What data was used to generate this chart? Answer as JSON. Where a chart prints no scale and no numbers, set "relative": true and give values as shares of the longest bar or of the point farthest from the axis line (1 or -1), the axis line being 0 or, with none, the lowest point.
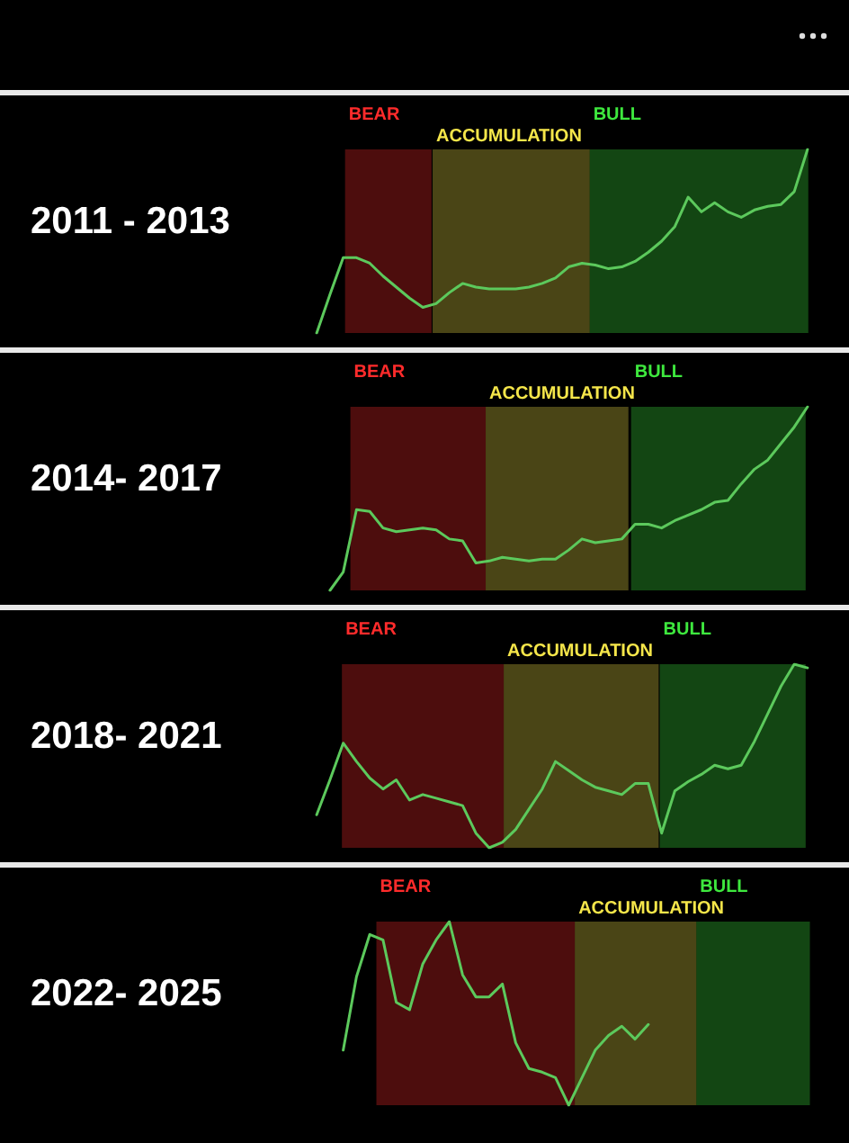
{
  "chart_data": [
    {
      "type": "line",
      "title": "2011 - 2013",
      "relative": true,
      "tick_labels": false,
      "marker": "none",
      "line_style": "solid",
      "annotations": [
        "BEAR",
        "ACCUMULATION",
        "BULL"
      ],
      "categories": [
        null,
        null,
        null,
        null,
        null,
        null,
        null,
        null,
        null,
        null,
        null,
        null,
        null,
        null,
        null,
        null,
        null,
        null,
        null,
        null,
        null,
        null,
        null,
        null,
        null,
        null,
        null,
        null,
        null,
        null,
        null,
        null,
        null,
        null,
        null,
        null,
        null,
        null,
        null,
        null
      ],
      "series": [
        {
          "color": "#5cc95c",
          "values": [
            null,
            0,
            0.21,
            0.41,
            0.41,
            0.38,
            0.31,
            0.25,
            0.19,
            0.14,
            0.16,
            0.22,
            0.27,
            0.25,
            0.24,
            0.24,
            0.24,
            0.25,
            0.27,
            0.3,
            0.36,
            0.38,
            0.37,
            0.35,
            0.36,
            0.39,
            0.44,
            0.5,
            0.58,
            0.74,
            0.66,
            0.71,
            0.66,
            0.63,
            0.67,
            0.69,
            0.7,
            0.77,
            1,
            null
          ]
        }
      ]
    },
    {
      "type": "line",
      "title": "2014- 2017",
      "relative": true,
      "tick_labels": false,
      "marker": "none",
      "line_style": "solid",
      "annotations": [
        "BEAR",
        "ACCUMULATION",
        "BULL"
      ],
      "categories": [
        null,
        null,
        null,
        null,
        null,
        null,
        null,
        null,
        null,
        null,
        null,
        null,
        null,
        null,
        null,
        null,
        null,
        null,
        null,
        null,
        null,
        null,
        null,
        null,
        null,
        null,
        null,
        null,
        null,
        null,
        null,
        null,
        null,
        null,
        null,
        null,
        null,
        null,
        null,
        null
      ],
      "series": [
        {
          "color": "#5cc95c",
          "values": [
            null,
            null,
            0,
            0.1,
            0.44,
            0.43,
            0.34,
            0.32,
            0.33,
            0.34,
            0.33,
            0.28,
            0.27,
            0.15,
            0.16,
            0.18,
            0.17,
            0.16,
            0.17,
            0.17,
            0.22,
            0.28,
            0.26,
            0.27,
            0.28,
            0.36,
            0.36,
            0.34,
            0.38,
            0.41,
            0.44,
            0.48,
            0.49,
            0.58,
            0.66,
            0.71,
            0.8,
            0.89,
            1,
            null
          ]
        }
      ]
    },
    {
      "type": "line",
      "title": "2018- 2021",
      "relative": true,
      "tick_labels": false,
      "marker": "none",
      "line_style": "solid",
      "annotations": [
        "BEAR",
        "ACCUMULATION",
        "BULL"
      ],
      "categories": [
        null,
        null,
        null,
        null,
        null,
        null,
        null,
        null,
        null,
        null,
        null,
        null,
        null,
        null,
        null,
        null,
        null,
        null,
        null,
        null,
        null,
        null,
        null,
        null,
        null,
        null,
        null,
        null,
        null,
        null,
        null,
        null,
        null,
        null,
        null,
        null,
        null,
        null,
        null,
        null
      ],
      "series": [
        {
          "color": "#5cc95c",
          "values": [
            null,
            0.18,
            0.37,
            0.57,
            0.47,
            0.38,
            0.32,
            0.37,
            0.26,
            0.29,
            0.27,
            0.25,
            0.23,
            0.08,
            0,
            0.03,
            0.1,
            0.21,
            0.32,
            0.47,
            0.42,
            0.37,
            0.33,
            0.31,
            0.29,
            0.35,
            0.35,
            0.08,
            0.31,
            0.36,
            0.4,
            0.45,
            0.43,
            0.45,
            0.58,
            0.73,
            0.88,
            1,
            0.98,
            null
          ]
        }
      ]
    },
    {
      "type": "line",
      "title": "2022- 2025",
      "relative": true,
      "tick_labels": false,
      "marker": "none",
      "line_style": "solid",
      "annotations": [
        "BEAR",
        "ACCUMULATION",
        "BULL"
      ],
      "categories": [
        null,
        null,
        null,
        null,
        null,
        null,
        null,
        null,
        null,
        null,
        null,
        null,
        null,
        null,
        null,
        null,
        null,
        null,
        null,
        null,
        null,
        null,
        null,
        null,
        null,
        null,
        null,
        null,
        null,
        null,
        null,
        null,
        null,
        null,
        null,
        null,
        null,
        null,
        null,
        null
      ],
      "series": [
        {
          "color": "#5cc95c",
          "values": [
            null,
            null,
            null,
            0.3,
            0.7,
            0.93,
            0.9,
            0.56,
            0.52,
            0.77,
            0.9,
            1,
            0.71,
            0.59,
            0.59,
            0.66,
            0.34,
            0.2,
            0.18,
            0.15,
            0,
            0.15,
            0.3,
            0.38,
            0.43,
            0.36,
            0.44,
            null,
            null,
            null,
            null,
            null,
            null,
            null,
            null,
            null,
            null,
            null,
            null,
            null
          ]
        }
      ]
    }
  ]
}
